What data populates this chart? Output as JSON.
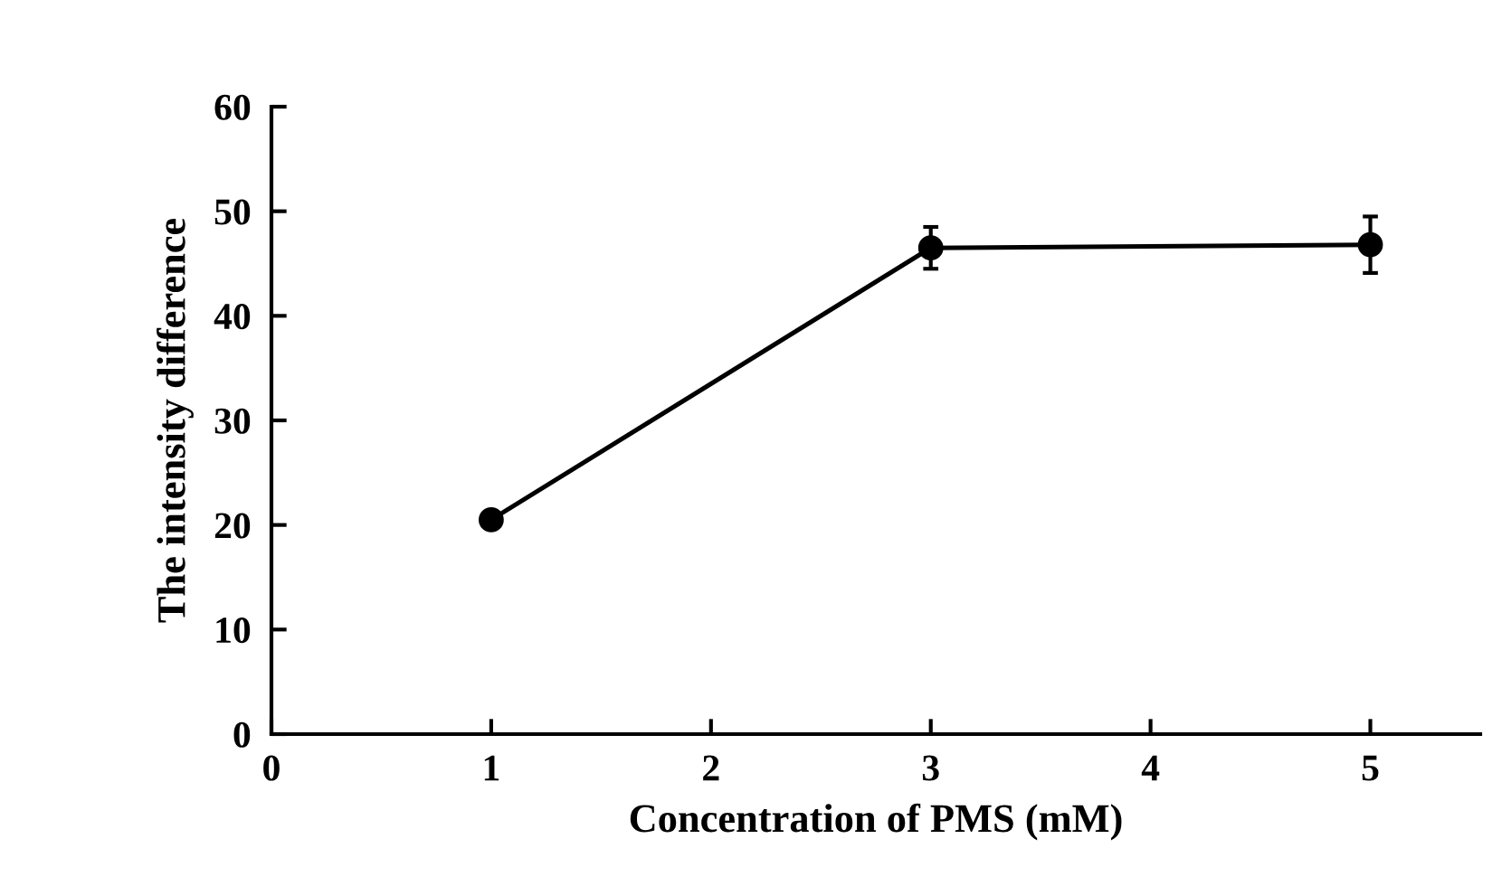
{
  "chart_data": {
    "type": "line",
    "xlabel": "Concentration of PMS (mM)",
    "ylabel": "The intensity difference",
    "x": [
      1,
      3,
      5
    ],
    "series": [
      {
        "color": "#000000",
        "values": [
          20.5,
          46.5,
          46.8
        ],
        "errors": [
          null,
          2.0,
          2.7
        ]
      }
    ],
    "marker": "circle",
    "line_style": "solid",
    "grid": false,
    "legend": false,
    "xlim": [
      0,
      5.5
    ],
    "xticks": [
      0,
      1,
      2,
      3,
      4,
      5
    ],
    "ylim": [
      0,
      60
    ],
    "yticks": [
      0,
      10,
      20,
      30,
      40,
      50,
      60
    ]
  }
}
